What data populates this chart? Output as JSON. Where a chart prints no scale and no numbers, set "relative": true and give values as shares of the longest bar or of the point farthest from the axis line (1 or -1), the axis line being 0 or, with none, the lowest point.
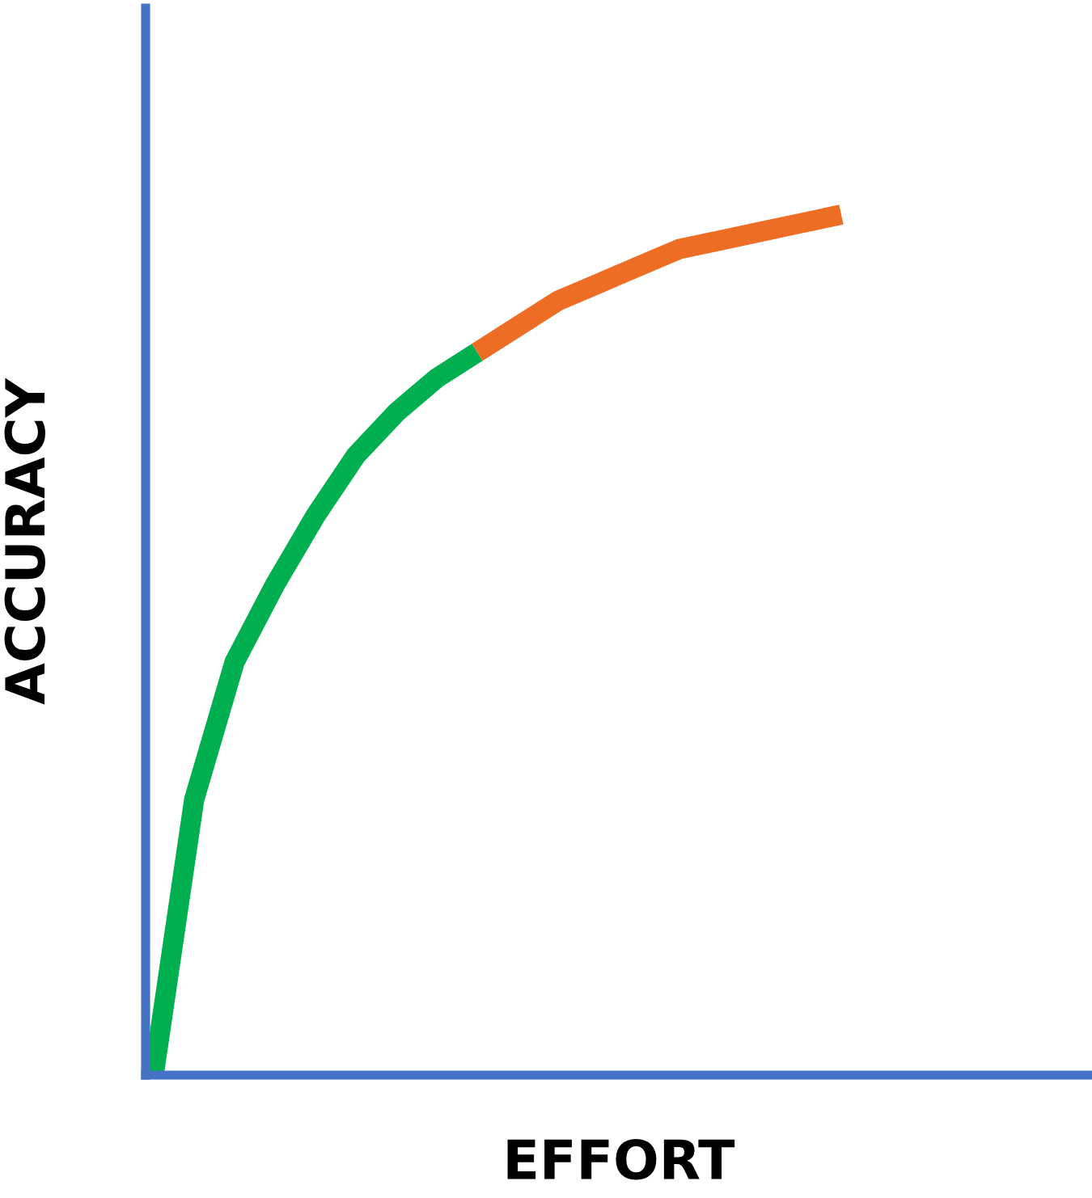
{
  "chart_data": {
    "type": "line",
    "relative": true,
    "xlabel": "EFFORT",
    "ylabel": "ACCURACY",
    "tick_labels": false,
    "marker": "none",
    "line_style": "solid",
    "categories": [
      null,
      null,
      null,
      null,
      null,
      null,
      null,
      null,
      null,
      null,
      null,
      null,
      null,
      null,
      null,
      null,
      null,
      null,
      null,
      null,
      null,
      null,
      null,
      null
    ],
    "series": [
      {
        "color": "#00b050",
        "values": [
          0,
          0.32,
          0.48,
          0.57,
          0.65,
          0.72,
          0.77,
          0.81,
          0.84,
          null,
          null,
          null,
          null,
          null,
          null,
          null,
          null,
          null,
          null,
          null,
          null,
          null,
          null,
          null
        ]
      },
      {
        "color": "#ed6d25",
        "values": [
          null,
          null,
          null,
          null,
          null,
          null,
          null,
          null,
          0.84,
          0.87,
          0.9,
          0.92,
          0.94,
          0.96,
          0.97,
          0.98,
          0.99,
          1,
          null,
          null,
          null,
          null,
          null,
          null
        ]
      }
    ]
  }
}
